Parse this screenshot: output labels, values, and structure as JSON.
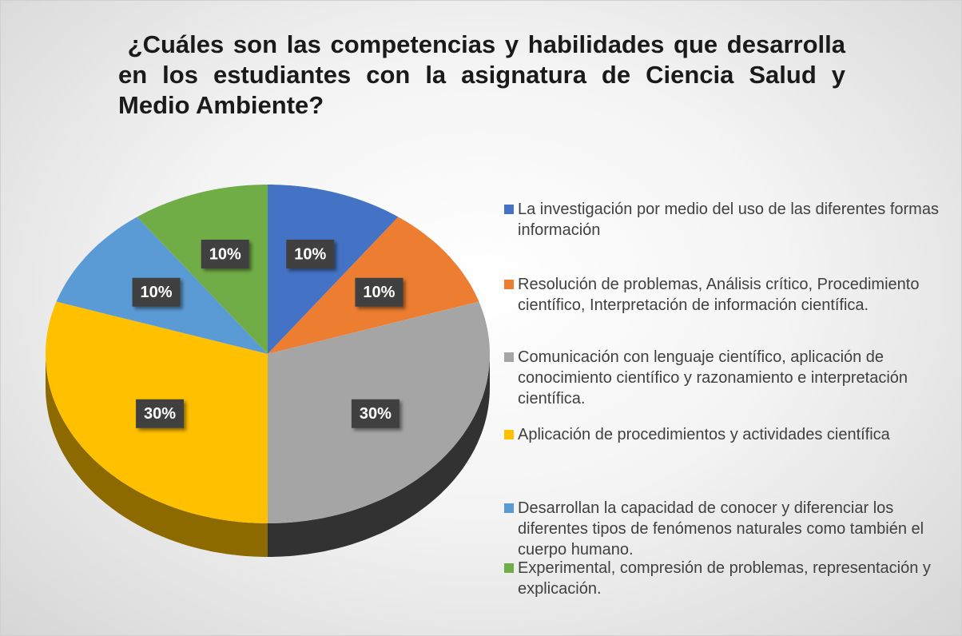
{
  "chart_data": {
    "type": "pie",
    "title": " ¿Cuáles son las competencias y habilidades que desarrolla en los estudiantes con la asignatura de Ciencia Salud y Medio Ambiente?",
    "categories": [
      "La investigación por medio del uso de las diferentes formas información",
      "Resolución de problemas, Análisis crítico, Procedimiento científico, Interpretación de información científica.",
      "Comunicación con lenguaje científico, aplicación de conocimiento científico y razonamiento e interpretación científica.",
      "Aplicación de procedimientos y actividades científica",
      "Desarrollan la capacidad de conocer y diferenciar los diferentes tipos de fenómenos naturales como también el cuerpo humano.",
      "Experimental, compresión de problemas, representación y explicación."
    ],
    "values": [
      10,
      10,
      30,
      30,
      10,
      10
    ],
    "value_labels": [
      "10%",
      "10%",
      "30%",
      "30%",
      "10%",
      "10%"
    ],
    "colors": [
      "#4472c4",
      "#ed7d31",
      "#a5a5a5",
      "#ffc000",
      "#5b9bd5",
      "#70ad47"
    ]
  }
}
